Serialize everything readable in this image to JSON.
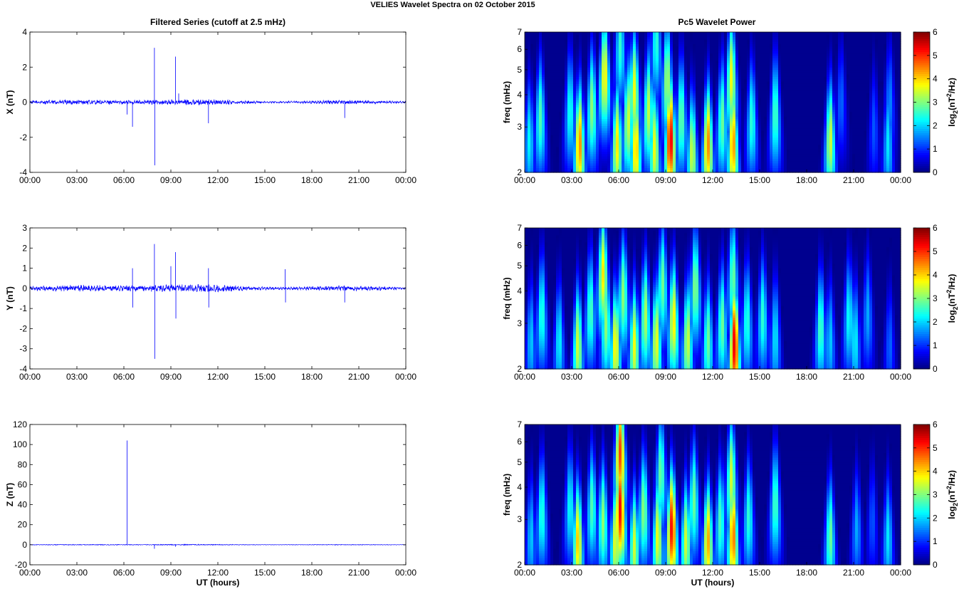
{
  "figure_title": "VELIES Wavelet Spectra on 02 October   2015",
  "left_title": "Filtered Series (cutoff at 2.5 mHz)",
  "right_title": "Pc5 Wavelet Power",
  "x_label": "UT (hours)",
  "freq_label": "freq (mHz)",
  "colorbar_label": "log2(nT2/Hz)",
  "colorbar_label_parts": {
    "base": "log",
    "sub": "2",
    "open": "(nT",
    "sup": "2",
    "close": "/Hz)"
  },
  "colors": {
    "line": "#0000ff",
    "bg_spectrum": "#00008f"
  },
  "chart_data": [
    {
      "type": "line",
      "name": "x-series",
      "ylabel": "X (nT)",
      "ylim": [
        -4,
        4
      ],
      "yticks": [
        -4,
        -2,
        0,
        2,
        4
      ],
      "xlim": [
        0,
        24
      ],
      "xticks": [
        "00:00",
        "03:00",
        "06:00",
        "09:00",
        "12:00",
        "15:00",
        "18:00",
        "21:00",
        "00:00"
      ],
      "noise_amplitude": 0.1,
      "spikes": [
        {
          "x": 7.95,
          "y": 3.1
        },
        {
          "x": 7.97,
          "y": -3.6
        },
        {
          "x": 9.3,
          "y": 2.6
        },
        {
          "x": 6.55,
          "y": -1.4
        },
        {
          "x": 11.4,
          "y": -1.2
        },
        {
          "x": 20.1,
          "y": -0.9
        },
        {
          "x": 6.2,
          "y": -0.7
        },
        {
          "x": 9.5,
          "y": 0.5
        }
      ]
    },
    {
      "type": "line",
      "name": "y-series",
      "ylabel": "Y (nT)",
      "ylim": [
        -4,
        3
      ],
      "yticks": [
        -4,
        -3,
        -2,
        -1,
        0,
        1,
        2,
        3
      ],
      "xlim": [
        0,
        24
      ],
      "xticks": [
        "00:00",
        "03:00",
        "06:00",
        "09:00",
        "12:00",
        "15:00",
        "18:00",
        "21:00",
        "00:00"
      ],
      "noise_amplitude": 0.12,
      "spikes": [
        {
          "x": 7.95,
          "y": 2.2
        },
        {
          "x": 7.97,
          "y": -3.5
        },
        {
          "x": 9.3,
          "y": 1.8
        },
        {
          "x": 9.32,
          "y": -1.5
        },
        {
          "x": 6.55,
          "y": 1.0
        },
        {
          "x": 6.57,
          "y": -0.95
        },
        {
          "x": 11.4,
          "y": 1.0
        },
        {
          "x": 11.42,
          "y": -0.95
        },
        {
          "x": 16.3,
          "y": 0.95
        },
        {
          "x": 16.32,
          "y": -0.7
        },
        {
          "x": 20.1,
          "y": -0.7
        },
        {
          "x": 9.0,
          "y": 1.1
        }
      ]
    },
    {
      "type": "line",
      "name": "z-series",
      "ylabel": "Z (nT)",
      "ylim": [
        -20,
        120
      ],
      "yticks": [
        -20,
        0,
        20,
        40,
        60,
        80,
        100,
        120
      ],
      "xlim": [
        0,
        24
      ],
      "xticks": [
        "00:00",
        "03:00",
        "06:00",
        "09:00",
        "12:00",
        "15:00",
        "18:00",
        "21:00",
        "00:00"
      ],
      "xlabel": "UT (hours)",
      "noise_amplitude": 0.3,
      "spikes": [
        {
          "x": 6.2,
          "y": 104
        },
        {
          "x": 7.95,
          "y": -4
        },
        {
          "x": 9.3,
          "y": -2
        }
      ]
    },
    {
      "type": "heatmap",
      "name": "x-wavelet",
      "ylabel": "freq (mHz)",
      "ylim": [
        2,
        7
      ],
      "yticks": [
        2,
        3,
        4,
        5,
        6,
        7
      ],
      "log_y": true,
      "xlim": [
        0,
        24
      ],
      "xticks": [
        "00:00",
        "03:00",
        "06:00",
        "09:00",
        "12:00",
        "15:00",
        "18:00",
        "21:00",
        "00:00"
      ],
      "colorbar": {
        "range": [
          0,
          6
        ],
        "ticks": [
          0,
          1,
          2,
          3,
          4,
          5,
          6
        ],
        "colormap": "jet"
      },
      "blobs": [
        {
          "t": 0.3,
          "f": 2.7,
          "p": 2.3
        },
        {
          "t": 1.0,
          "f": 3.3,
          "p": 2.8
        },
        {
          "t": 3.5,
          "f": 2.6,
          "p": 4.6
        },
        {
          "t": 2.9,
          "f": 3.5,
          "p": 2.5
        },
        {
          "t": 4.3,
          "f": 3.6,
          "p": 3.2
        },
        {
          "t": 5.1,
          "f": 4.8,
          "p": 4.0
        },
        {
          "t": 5.9,
          "f": 2.6,
          "p": 4.0
        },
        {
          "t": 6.1,
          "f": 6.2,
          "p": 2.6
        },
        {
          "t": 6.6,
          "f": 3.2,
          "p": 3.6
        },
        {
          "t": 7.1,
          "f": 2.5,
          "p": 4.3
        },
        {
          "t": 7.0,
          "f": 4.2,
          "p": 3.8
        },
        {
          "t": 7.9,
          "f": 3.5,
          "p": 3.5
        },
        {
          "t": 8.3,
          "f": 2.5,
          "p": 3.8
        },
        {
          "t": 8.4,
          "f": 6.5,
          "p": 2.6
        },
        {
          "t": 9.3,
          "f": 2.7,
          "p": 5.6
        },
        {
          "t": 9.1,
          "f": 4.6,
          "p": 3.4
        },
        {
          "t": 10.0,
          "f": 3.3,
          "p": 3.0
        },
        {
          "t": 10.7,
          "f": 2.4,
          "p": 3.6
        },
        {
          "t": 11.7,
          "f": 2.6,
          "p": 4.6
        },
        {
          "t": 12.6,
          "f": 3.2,
          "p": 3.0
        },
        {
          "t": 13.3,
          "f": 2.6,
          "p": 4.6
        },
        {
          "t": 13.2,
          "f": 4.7,
          "p": 3.8
        },
        {
          "t": 14.5,
          "f": 3.2,
          "p": 2.6
        },
        {
          "t": 16.0,
          "f": 3.4,
          "p": 2.8
        },
        {
          "t": 19.5,
          "f": 2.7,
          "p": 3.6
        },
        {
          "t": 20.2,
          "f": 3.8,
          "p": 1.4
        },
        {
          "t": 22.3,
          "f": 3.0,
          "p": 1.3
        },
        {
          "t": 23.2,
          "f": 2.6,
          "p": 2.2
        },
        {
          "t": 23.3,
          "f": 3.8,
          "p": 1.6
        }
      ]
    },
    {
      "type": "heatmap",
      "name": "y-wavelet",
      "ylabel": "freq (mHz)",
      "ylim": [
        2,
        7
      ],
      "yticks": [
        2,
        3,
        4,
        5,
        6,
        7
      ],
      "log_y": true,
      "xlim": [
        0,
        24
      ],
      "xticks": [
        "00:00",
        "03:00",
        "06:00",
        "09:00",
        "12:00",
        "15:00",
        "18:00",
        "21:00",
        "00:00"
      ],
      "colorbar": {
        "range": [
          0,
          6
        ],
        "ticks": [
          0,
          1,
          2,
          3,
          4,
          5,
          6
        ],
        "colormap": "jet"
      },
      "blobs": [
        {
          "t": 0.4,
          "f": 2.6,
          "p": 2.0
        },
        {
          "t": 1.1,
          "f": 3.3,
          "p": 2.6
        },
        {
          "t": 2.2,
          "f": 2.6,
          "p": 2.3
        },
        {
          "t": 3.4,
          "f": 2.5,
          "p": 3.6
        },
        {
          "t": 4.2,
          "f": 3.4,
          "p": 2.8
        },
        {
          "t": 5.0,
          "f": 4.7,
          "p": 4.0
        },
        {
          "t": 5.2,
          "f": 3.0,
          "p": 3.2
        },
        {
          "t": 5.8,
          "f": 2.5,
          "p": 4.0
        },
        {
          "t": 6.3,
          "f": 3.9,
          "p": 3.2
        },
        {
          "t": 7.0,
          "f": 2.5,
          "p": 3.8
        },
        {
          "t": 7.7,
          "f": 3.2,
          "p": 3.4
        },
        {
          "t": 8.4,
          "f": 2.6,
          "p": 3.8
        },
        {
          "t": 8.8,
          "f": 4.3,
          "p": 3.0
        },
        {
          "t": 9.5,
          "f": 3.1,
          "p": 4.0
        },
        {
          "t": 10.4,
          "f": 2.6,
          "p": 3.6
        },
        {
          "t": 10.9,
          "f": 4.2,
          "p": 3.2
        },
        {
          "t": 11.7,
          "f": 2.6,
          "p": 3.0
        },
        {
          "t": 12.6,
          "f": 3.0,
          "p": 3.0
        },
        {
          "t": 13.4,
          "f": 2.5,
          "p": 5.6
        },
        {
          "t": 13.3,
          "f": 4.6,
          "p": 3.0
        },
        {
          "t": 14.2,
          "f": 3.1,
          "p": 2.6
        },
        {
          "t": 15.2,
          "f": 3.2,
          "p": 2.6
        },
        {
          "t": 16.0,
          "f": 2.7,
          "p": 2.2
        },
        {
          "t": 18.9,
          "f": 2.9,
          "p": 2.8
        },
        {
          "t": 19.5,
          "f": 2.6,
          "p": 2.0
        },
        {
          "t": 20.7,
          "f": 3.2,
          "p": 2.4
        },
        {
          "t": 21.1,
          "f": 2.6,
          "p": 2.3
        },
        {
          "t": 21.9,
          "f": 3.3,
          "p": 1.8
        },
        {
          "t": 23.3,
          "f": 2.5,
          "p": 1.4
        }
      ]
    },
    {
      "type": "heatmap",
      "name": "z-wavelet",
      "ylabel": "freq (mHz)",
      "ylim": [
        2,
        7
      ],
      "yticks": [
        2,
        3,
        4,
        5,
        6,
        7
      ],
      "log_y": true,
      "xlim": [
        0,
        24
      ],
      "xticks": [
        "00:00",
        "03:00",
        "06:00",
        "09:00",
        "12:00",
        "15:00",
        "18:00",
        "21:00",
        "00:00"
      ],
      "xlabel": "UT (hours)",
      "colorbar": {
        "range": [
          0,
          6
        ],
        "ticks": [
          0,
          1,
          2,
          3,
          4,
          5,
          6
        ],
        "colormap": "jet"
      },
      "blobs": [
        {
          "t": 0.4,
          "f": 2.6,
          "p": 2.0
        },
        {
          "t": 1.1,
          "f": 3.2,
          "p": 2.6
        },
        {
          "t": 3.4,
          "f": 2.5,
          "p": 4.2
        },
        {
          "t": 2.9,
          "f": 3.4,
          "p": 2.4
        },
        {
          "t": 4.3,
          "f": 3.4,
          "p": 2.8
        },
        {
          "t": 5.0,
          "f": 3.0,
          "p": 3.2
        },
        {
          "t": 5.8,
          "f": 2.5,
          "p": 3.8
        },
        {
          "t": 6.1,
          "f": 3.3,
          "p": 5.4
        },
        {
          "t": 6.1,
          "f": 5.5,
          "p": 5.0
        },
        {
          "t": 7.0,
          "f": 2.4,
          "p": 3.6
        },
        {
          "t": 7.6,
          "f": 3.3,
          "p": 3.2
        },
        {
          "t": 8.5,
          "f": 2.6,
          "p": 3.8
        },
        {
          "t": 8.7,
          "f": 4.6,
          "p": 3.0
        },
        {
          "t": 9.4,
          "f": 2.8,
          "p": 5.4
        },
        {
          "t": 10.3,
          "f": 2.5,
          "p": 3.6
        },
        {
          "t": 10.8,
          "f": 3.6,
          "p": 3.0
        },
        {
          "t": 11.7,
          "f": 2.5,
          "p": 4.4
        },
        {
          "t": 12.5,
          "f": 3.0,
          "p": 2.8
        },
        {
          "t": 13.3,
          "f": 2.6,
          "p": 4.8
        },
        {
          "t": 13.2,
          "f": 4.4,
          "p": 3.6
        },
        {
          "t": 14.3,
          "f": 3.1,
          "p": 2.6
        },
        {
          "t": 16.0,
          "f": 3.5,
          "p": 2.8
        },
        {
          "t": 19.5,
          "f": 2.6,
          "p": 3.0
        },
        {
          "t": 21.2,
          "f": 2.8,
          "p": 1.8
        },
        {
          "t": 22.2,
          "f": 3.0,
          "p": 1.3
        },
        {
          "t": 23.2,
          "f": 2.6,
          "p": 2.2
        }
      ]
    }
  ]
}
